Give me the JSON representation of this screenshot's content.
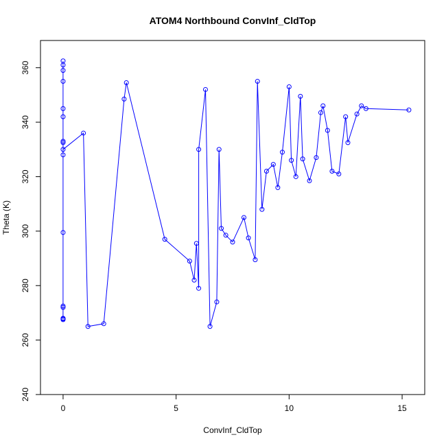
{
  "chart_data": {
    "type": "line",
    "title": "ATOM4 Northbound ConvInf_CldTop",
    "xlabel": "ConvInf_CldTop",
    "ylabel": "Theta (K)",
    "xlim": [
      -1,
      16
    ],
    "ylim": [
      240,
      370
    ],
    "xticks": [
      "0",
      "5",
      "10",
      "15"
    ],
    "yticks": [
      "240",
      "260",
      "280",
      "300",
      "320",
      "340",
      "360"
    ],
    "grid": false,
    "legend": "none",
    "line_color": "#0000ff",
    "marker": "open-circle",
    "series": [
      {
        "x": [
          0.0,
          0.0,
          0.0,
          0.0,
          0.0,
          0.0,
          0.0,
          0.0,
          0.0,
          0.0,
          0.0,
          0.0,
          0.0,
          0.0,
          0.0,
          0.0,
          0.9,
          1.1,
          1.8,
          2.7,
          2.8,
          4.5,
          5.6,
          5.8,
          5.9,
          6.0,
          6.0,
          6.3,
          6.5,
          6.8,
          6.9,
          7.0,
          7.2,
          7.5,
          8.0,
          8.2,
          8.5,
          8.6,
          8.8,
          9.0,
          9.3,
          9.5,
          9.7,
          10.0,
          10.1,
          10.3,
          10.5,
          10.6,
          10.9,
          11.2,
          11.4,
          11.5,
          11.7,
          11.9,
          12.2,
          12.5,
          12.6,
          13.0,
          13.2,
          13.4,
          15.3
        ],
        "y": [
          362.5,
          361.0,
          359.0,
          355.0,
          345.0,
          342.0,
          333.0,
          332.5,
          328.0,
          299.5,
          272.0,
          268.0,
          267.5,
          267.8,
          272.5,
          330.0,
          336.0,
          265.0,
          266.0,
          348.5,
          354.5,
          297.0,
          289.0,
          282.0,
          295.5,
          279.0,
          330.0,
          352.0,
          265.0,
          274.0,
          330.0,
          301.0,
          298.5,
          296.0,
          305.0,
          297.5,
          289.5,
          355.0,
          308.0,
          322.0,
          324.5,
          316.0,
          329.0,
          353.0,
          326.0,
          320.0,
          349.5,
          326.5,
          318.5,
          327.0,
          343.5,
          346.0,
          337.0,
          322.0,
          321.0,
          342.0,
          332.5,
          343.0,
          346.0,
          345.0,
          344.5
        ]
      }
    ]
  }
}
